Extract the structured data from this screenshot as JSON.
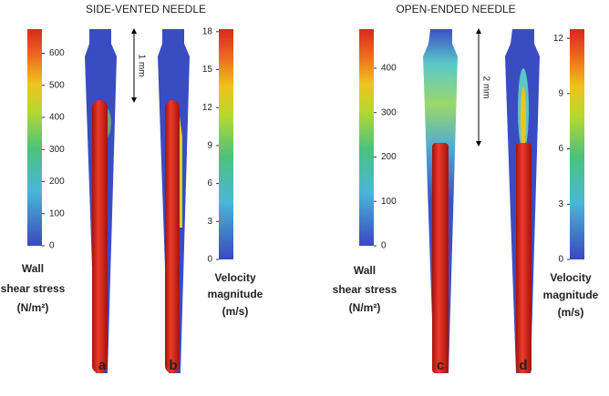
{
  "titles": [
    "SIDE-VENTED NEEDLE",
    "OPEN-ENDED NEEDLE"
  ],
  "colorbars": [
    {
      "label": [
        "Wall",
        "shear stress",
        "(N/m²)"
      ],
      "lim": [
        0,
        675
      ],
      "ticks": [
        0,
        100,
        200,
        300,
        400,
        500,
        600
      ]
    },
    {
      "label": [
        "Velocity",
        "magnitude",
        "(m/s)"
      ],
      "lim": [
        0,
        18.2
      ],
      "ticks": [
        0,
        3,
        6,
        9,
        12,
        15,
        18
      ]
    },
    {
      "label": [
        "Wall",
        "shear stress",
        "(N/m²)"
      ],
      "lim": [
        0,
        488
      ],
      "ticks": [
        0,
        100,
        200,
        300,
        400
      ]
    },
    {
      "label": [
        "Velocity",
        "magnitude",
        "(m/s)"
      ],
      "lim": [
        0,
        12.5
      ],
      "ticks": [
        0,
        3,
        6,
        9,
        12
      ]
    }
  ],
  "scale_bars": [
    "1 mm",
    "2 mm"
  ],
  "panels": [
    "a",
    "b",
    "c",
    "d"
  ]
}
